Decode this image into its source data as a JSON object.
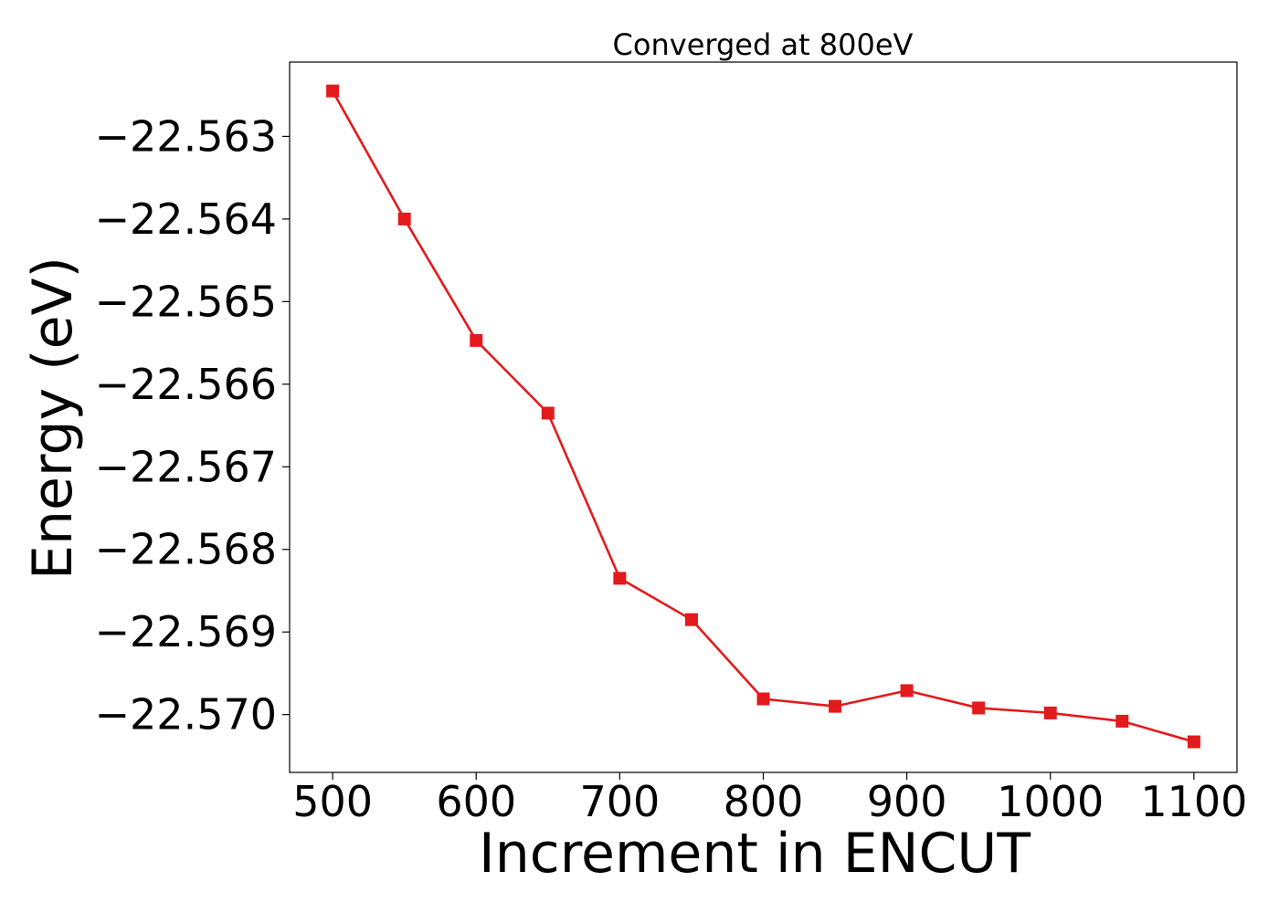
{
  "chart_data": {
    "type": "line",
    "title": "Converged at 800eV",
    "xlabel": "Increment in ENCUT",
    "ylabel": "Energy (eV)",
    "x_ticks": [
      "500",
      "600",
      "700",
      "800",
      "900",
      "1000",
      "1100"
    ],
    "y_ticks": [
      "−22.563",
      "−22.564",
      "−22.565",
      "−22.566",
      "−22.567",
      "−22.568",
      "−22.569",
      "−22.570"
    ],
    "xlim": [
      470,
      1130
    ],
    "ylim": [
      -22.5707,
      -22.5621
    ],
    "grid": false,
    "legend": "none",
    "series": [
      {
        "color": "#e31a1c",
        "marker": "square",
        "x": [
          500,
          550,
          600,
          650,
          700,
          750,
          800,
          850,
          900,
          950,
          1000,
          1050,
          1100
        ],
        "y": [
          -22.56245,
          -22.564,
          -22.56547,
          -22.56635,
          -22.56835,
          -22.56885,
          -22.56981,
          -22.5699,
          -22.56971,
          -22.56992,
          -22.56998,
          -22.57008,
          -22.57033
        ]
      }
    ]
  }
}
